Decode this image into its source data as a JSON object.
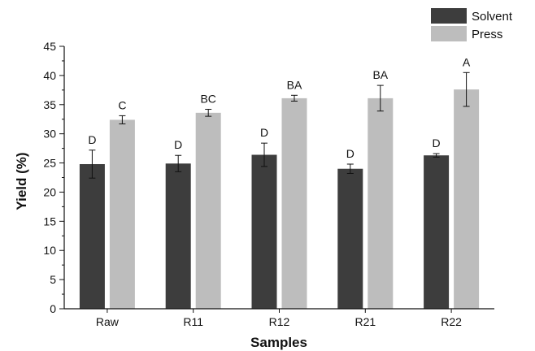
{
  "chart_data": {
    "type": "bar",
    "categories": [
      "Raw",
      "R11",
      "R12",
      "R21",
      "R22"
    ],
    "series": [
      {
        "name": "Solvent",
        "color": "#3d3d3d",
        "values": [
          24.8,
          24.9,
          26.4,
          24.0,
          26.3
        ],
        "errors": [
          2.4,
          1.4,
          2.0,
          0.8,
          0.3
        ],
        "labels": [
          "D",
          "D",
          "D",
          "D",
          "D"
        ]
      },
      {
        "name": "Press",
        "color": "#bdbdbd",
        "values": [
          32.4,
          33.6,
          36.1,
          36.1,
          37.6
        ],
        "errors": [
          0.7,
          0.6,
          0.5,
          2.2,
          2.9
        ],
        "labels": [
          "C",
          "BC",
          "BA",
          "BA",
          "A"
        ]
      }
    ],
    "title": "",
    "xlabel": "Samples",
    "ylabel": "Yield (%)",
    "ylim": [
      0,
      45
    ],
    "yticks": [
      "0",
      "5",
      "10",
      "15",
      "20",
      "25",
      "30",
      "35",
      "40",
      "45"
    ],
    "grid": false,
    "legend_position": "top-right"
  }
}
